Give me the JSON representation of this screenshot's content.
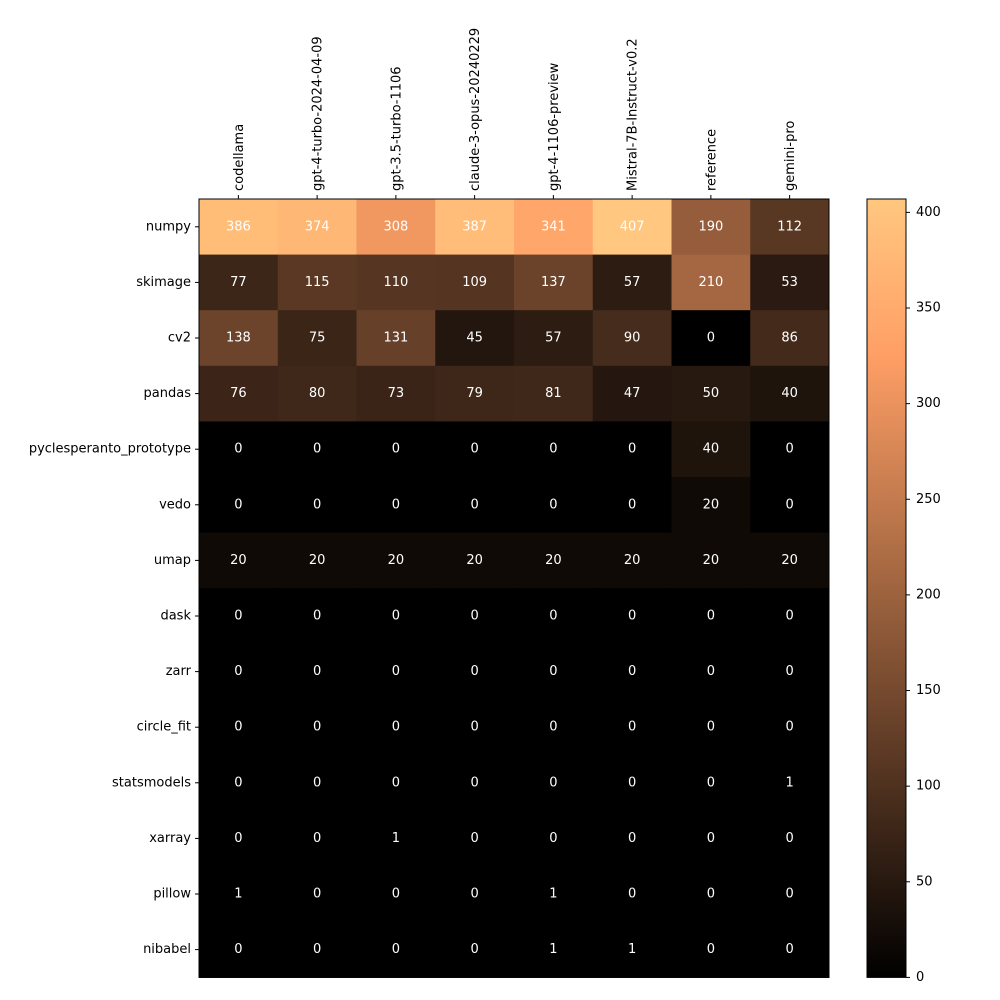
{
  "chart_data": {
    "type": "heatmap",
    "columns": [
      "codellama",
      "gpt-4-turbo-2024-04-09",
      "gpt-3.5-turbo-1106",
      "claude-3-opus-20240229",
      "gpt-4-1106-preview",
      "Mistral-7B-Instruct-v0.2",
      "reference",
      "gemini-pro"
    ],
    "rows": [
      "numpy",
      "skimage",
      "cv2",
      "pandas",
      "pyclesperanto_prototype",
      "vedo",
      "umap",
      "dask",
      "zarr",
      "circle_fit",
      "statsmodels",
      "xarray",
      "pillow",
      "nibabel"
    ],
    "values": [
      [
        386,
        374,
        308,
        387,
        341,
        407,
        190,
        112
      ],
      [
        77,
        115,
        110,
        109,
        137,
        57,
        210,
        53
      ],
      [
        138,
        75,
        131,
        45,
        57,
        90,
        0,
        86
      ],
      [
        76,
        80,
        73,
        79,
        81,
        47,
        50,
        40
      ],
      [
        0,
        0,
        0,
        0,
        0,
        0,
        40,
        0
      ],
      [
        0,
        0,
        0,
        0,
        0,
        0,
        20,
        0
      ],
      [
        20,
        20,
        20,
        20,
        20,
        20,
        20,
        20
      ],
      [
        0,
        0,
        0,
        0,
        0,
        0,
        0,
        0
      ],
      [
        0,
        0,
        0,
        0,
        0,
        0,
        0,
        0
      ],
      [
        0,
        0,
        0,
        0,
        0,
        0,
        0,
        0
      ],
      [
        0,
        0,
        0,
        0,
        0,
        0,
        0,
        1
      ],
      [
        0,
        0,
        1,
        0,
        0,
        0,
        0,
        0
      ],
      [
        1,
        0,
        0,
        0,
        1,
        0,
        0,
        0
      ],
      [
        0,
        0,
        0,
        0,
        1,
        1,
        0,
        0
      ]
    ],
    "colormap": "copper",
    "vmin": 0,
    "vmax": 407,
    "x_tick_position": "top",
    "colorbar": {
      "placement": "right",
      "ticks": [
        0,
        50,
        100,
        150,
        200,
        250,
        300,
        350,
        400
      ]
    },
    "cell_label_color": "#ffffff"
  }
}
